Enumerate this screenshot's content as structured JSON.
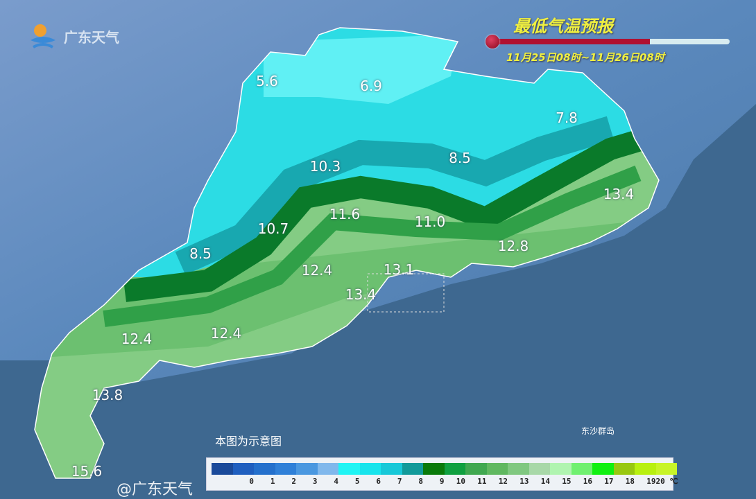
{
  "header": {
    "logo_text": "广东天气",
    "title": "最低气温预报",
    "period": "11月25日08时~11月26日08时",
    "thermometer_fill_pct": 66
  },
  "map": {
    "labels": [
      {
        "value": "5.6"
      },
      {
        "value": "6.9"
      },
      {
        "value": "7.8"
      },
      {
        "value": "10.3"
      },
      {
        "value": "8.5"
      },
      {
        "value": "13.4"
      },
      {
        "value": "11.6"
      },
      {
        "value": "11.0"
      },
      {
        "value": "10.7"
      },
      {
        "value": "8.5"
      },
      {
        "value": "12.8"
      },
      {
        "value": "12.4"
      },
      {
        "value": "13.1"
      },
      {
        "value": "13.4"
      },
      {
        "value": "12.4"
      },
      {
        "value": "12.4"
      },
      {
        "value": "13.8"
      },
      {
        "value": "15.6"
      }
    ],
    "note": "本图为示意图",
    "island_label": "东沙群岛"
  },
  "legend": {
    "colors": [
      "#1a4a9a",
      "#1f5fbf",
      "#2470cc",
      "#2f80d8",
      "#4a98e0",
      "#80b8ec",
      "#20f4f4",
      "#18e4ec",
      "#18c8d8",
      "#129a9a",
      "#0a7a0a",
      "#10a040",
      "#40a850",
      "#60b860",
      "#80c880",
      "#a8d8a8",
      "#b0f4b0",
      "#70f070",
      "#10f010",
      "#98c810",
      "#b8f010",
      "#c8f428"
    ],
    "labels": [
      "",
      "0",
      "1",
      "2",
      "3",
      "4",
      "5",
      "6",
      "7",
      "8",
      "9",
      "10",
      "11",
      "12",
      "13",
      "14",
      "15",
      "16",
      "17",
      "18",
      "19",
      "20 ℃"
    ]
  },
  "watermark": "@广东天气"
}
